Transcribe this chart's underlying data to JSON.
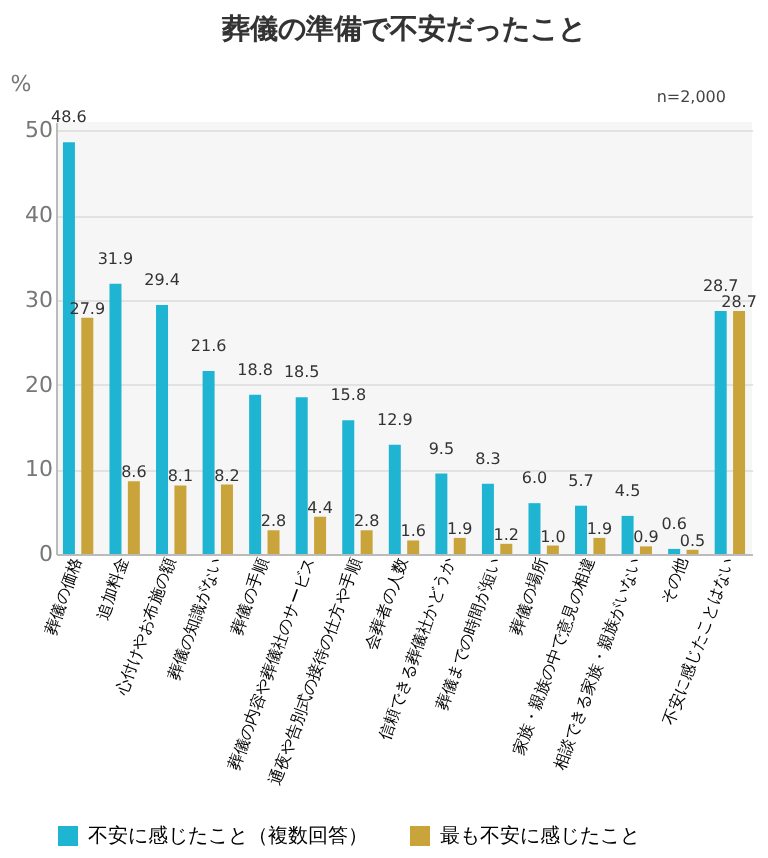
{
  "chart_data": {
    "type": "bar",
    "title": "葬儀の準備で不安だったこと",
    "ylabel": "%",
    "annotations": [
      "n=2,000"
    ],
    "categories": [
      "葬儀の価格",
      "追加料金",
      "心付けやお布施の額",
      "葬儀の知識がない",
      "葬儀の手順",
      "葬儀の内容や葬儀社のサービス",
      "通夜や告別式の接待の仕方や手順",
      "会葬者の人数",
      "信頼できる葬儀社かどうか",
      "葬儀までの時間が短い",
      "葬儀の場所",
      "家族・親族の中で意見の相違",
      "相談できる家族・親族がいない",
      "その他",
      "不安に感じたことはない"
    ],
    "series": [
      {
        "name": "不安に感じたこと（複数回答）",
        "color": "#1fb4d2",
        "values": [
          48.6,
          31.9,
          29.4,
          21.6,
          18.8,
          18.5,
          15.8,
          12.9,
          9.5,
          8.3,
          6.0,
          5.7,
          4.5,
          0.6,
          28.7
        ],
        "value_labels": [
          "48.6",
          "31.9",
          "29.4",
          "21.6",
          "18.8",
          "18.5",
          "15.8",
          "12.9",
          "9.5",
          "8.3",
          "6.0",
          "5.7",
          "4.5",
          "0.6",
          "28.7"
        ]
      },
      {
        "name": "最も不安に感じたこと",
        "color": "#c9a43a",
        "values": [
          27.9,
          8.6,
          8.1,
          8.2,
          2.8,
          4.4,
          2.8,
          1.6,
          1.9,
          1.2,
          1.0,
          1.9,
          0.9,
          0.5,
          28.7
        ],
        "value_labels": [
          "27.9",
          "8.6",
          "8.1",
          "8.2",
          "2.8",
          "4.4",
          "2.8",
          "1.6",
          "1.9",
          "1.2",
          "1.0",
          "1.9",
          "0.9",
          "0.5",
          "28.7"
        ]
      }
    ],
    "ylim": [
      0,
      51
    ],
    "yticks": [
      0,
      10,
      20,
      30,
      40,
      50
    ],
    "grid": "y",
    "legend": "bottom"
  }
}
